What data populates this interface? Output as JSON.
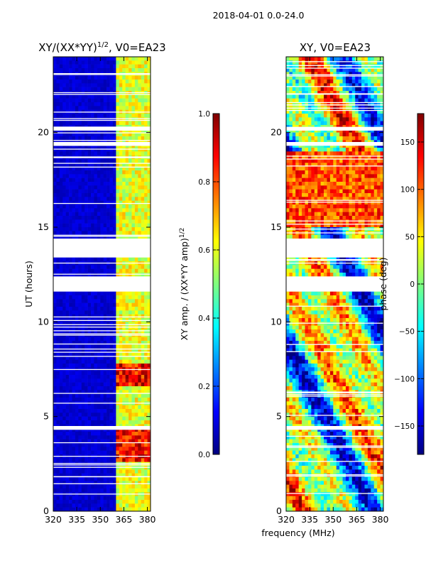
{
  "figure": {
    "suptitle": "2018-04-01 0.0-24.0",
    "xlabel": "frequency (MHz)"
  },
  "colors": {
    "jet": [
      "#00007f",
      "#0000ff",
      "#007fff",
      "#00ffff",
      "#7fff7f",
      "#ffff00",
      "#ff7f00",
      "#ff0000",
      "#7f0000"
    ],
    "gap": "#ffffff",
    "axis": "#000000"
  },
  "chart_data": [
    {
      "type": "heatmap",
      "title_base": "XY/(XX*YY)",
      "title_exponent": "1/2",
      "title_suffix": ", V0=EA23",
      "xlabel": "",
      "ylabel": "UT (hours)",
      "xlim": [
        320,
        382
      ],
      "ylim": [
        0,
        24
      ],
      "xticks": [
        320,
        335,
        350,
        365,
        380
      ],
      "yticks": [
        0,
        5,
        10,
        15,
        20
      ],
      "colorbar": {
        "label_base": "XY amp. / (XX*YY amp)",
        "label_exponent": "1/2",
        "range": [
          0.0,
          1.0
        ],
        "ticks": [
          "0.0",
          "0.2",
          "0.4",
          "0.6",
          "0.8",
          "1.0"
        ]
      },
      "flagged_hours": [
        [
          13.4,
          14.4
        ],
        [
          11.6,
          12.4
        ],
        [
          19.3,
          19.5
        ],
        [
          20.1,
          20.3
        ],
        [
          4.3,
          4.5
        ]
      ]
    },
    {
      "type": "heatmap",
      "title": "XY, V0=EA23",
      "xlabel": "",
      "ylabel": "",
      "xlim": [
        320,
        382
      ],
      "ylim": [
        0,
        24
      ],
      "xticks": [
        320,
        335,
        350,
        365,
        380
      ],
      "yticks": [
        0,
        5,
        10,
        15,
        20
      ],
      "colorbar": {
        "label": "phase (deg)",
        "range": [
          -180,
          180
        ],
        "ticks": [
          "-150",
          "-100",
          "-50",
          "0",
          "50",
          "100",
          "150"
        ]
      },
      "flagged_hours": [
        [
          13.4,
          14.4
        ],
        [
          11.6,
          12.4
        ],
        [
          19.3,
          19.5
        ],
        [
          20.1,
          20.3
        ],
        [
          4.3,
          4.5
        ]
      ]
    }
  ]
}
